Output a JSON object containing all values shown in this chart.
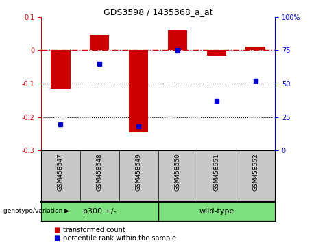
{
  "title": "GDS3598 / 1435368_a_at",
  "samples": [
    "GSM458547",
    "GSM458548",
    "GSM458549",
    "GSM458550",
    "GSM458551",
    "GSM458552"
  ],
  "red_values": [
    -0.115,
    0.047,
    -0.245,
    0.06,
    -0.015,
    0.012
  ],
  "blue_values": [
    20,
    65,
    18,
    75,
    37,
    52
  ],
  "ylim_left": [
    -0.3,
    0.1
  ],
  "ylim_right": [
    0,
    100
  ],
  "yticks_left": [
    -0.3,
    -0.2,
    -0.1,
    0.0,
    0.1
  ],
  "yticks_right": [
    0,
    25,
    50,
    75,
    100
  ],
  "red_color": "#CC0000",
  "blue_color": "#0000CC",
  "bar_width": 0.5,
  "legend_red": "transformed count",
  "legend_blue": "percentile rank within the sample",
  "genotype_label": "genotype/variation",
  "bg_color": "#ffffff",
  "label_area_color": "#c8c8c8",
  "group_area_color": "#7EE07E",
  "group1_label": "p300 +/-",
  "group2_label": "wild-type",
  "group_split": 2.5
}
